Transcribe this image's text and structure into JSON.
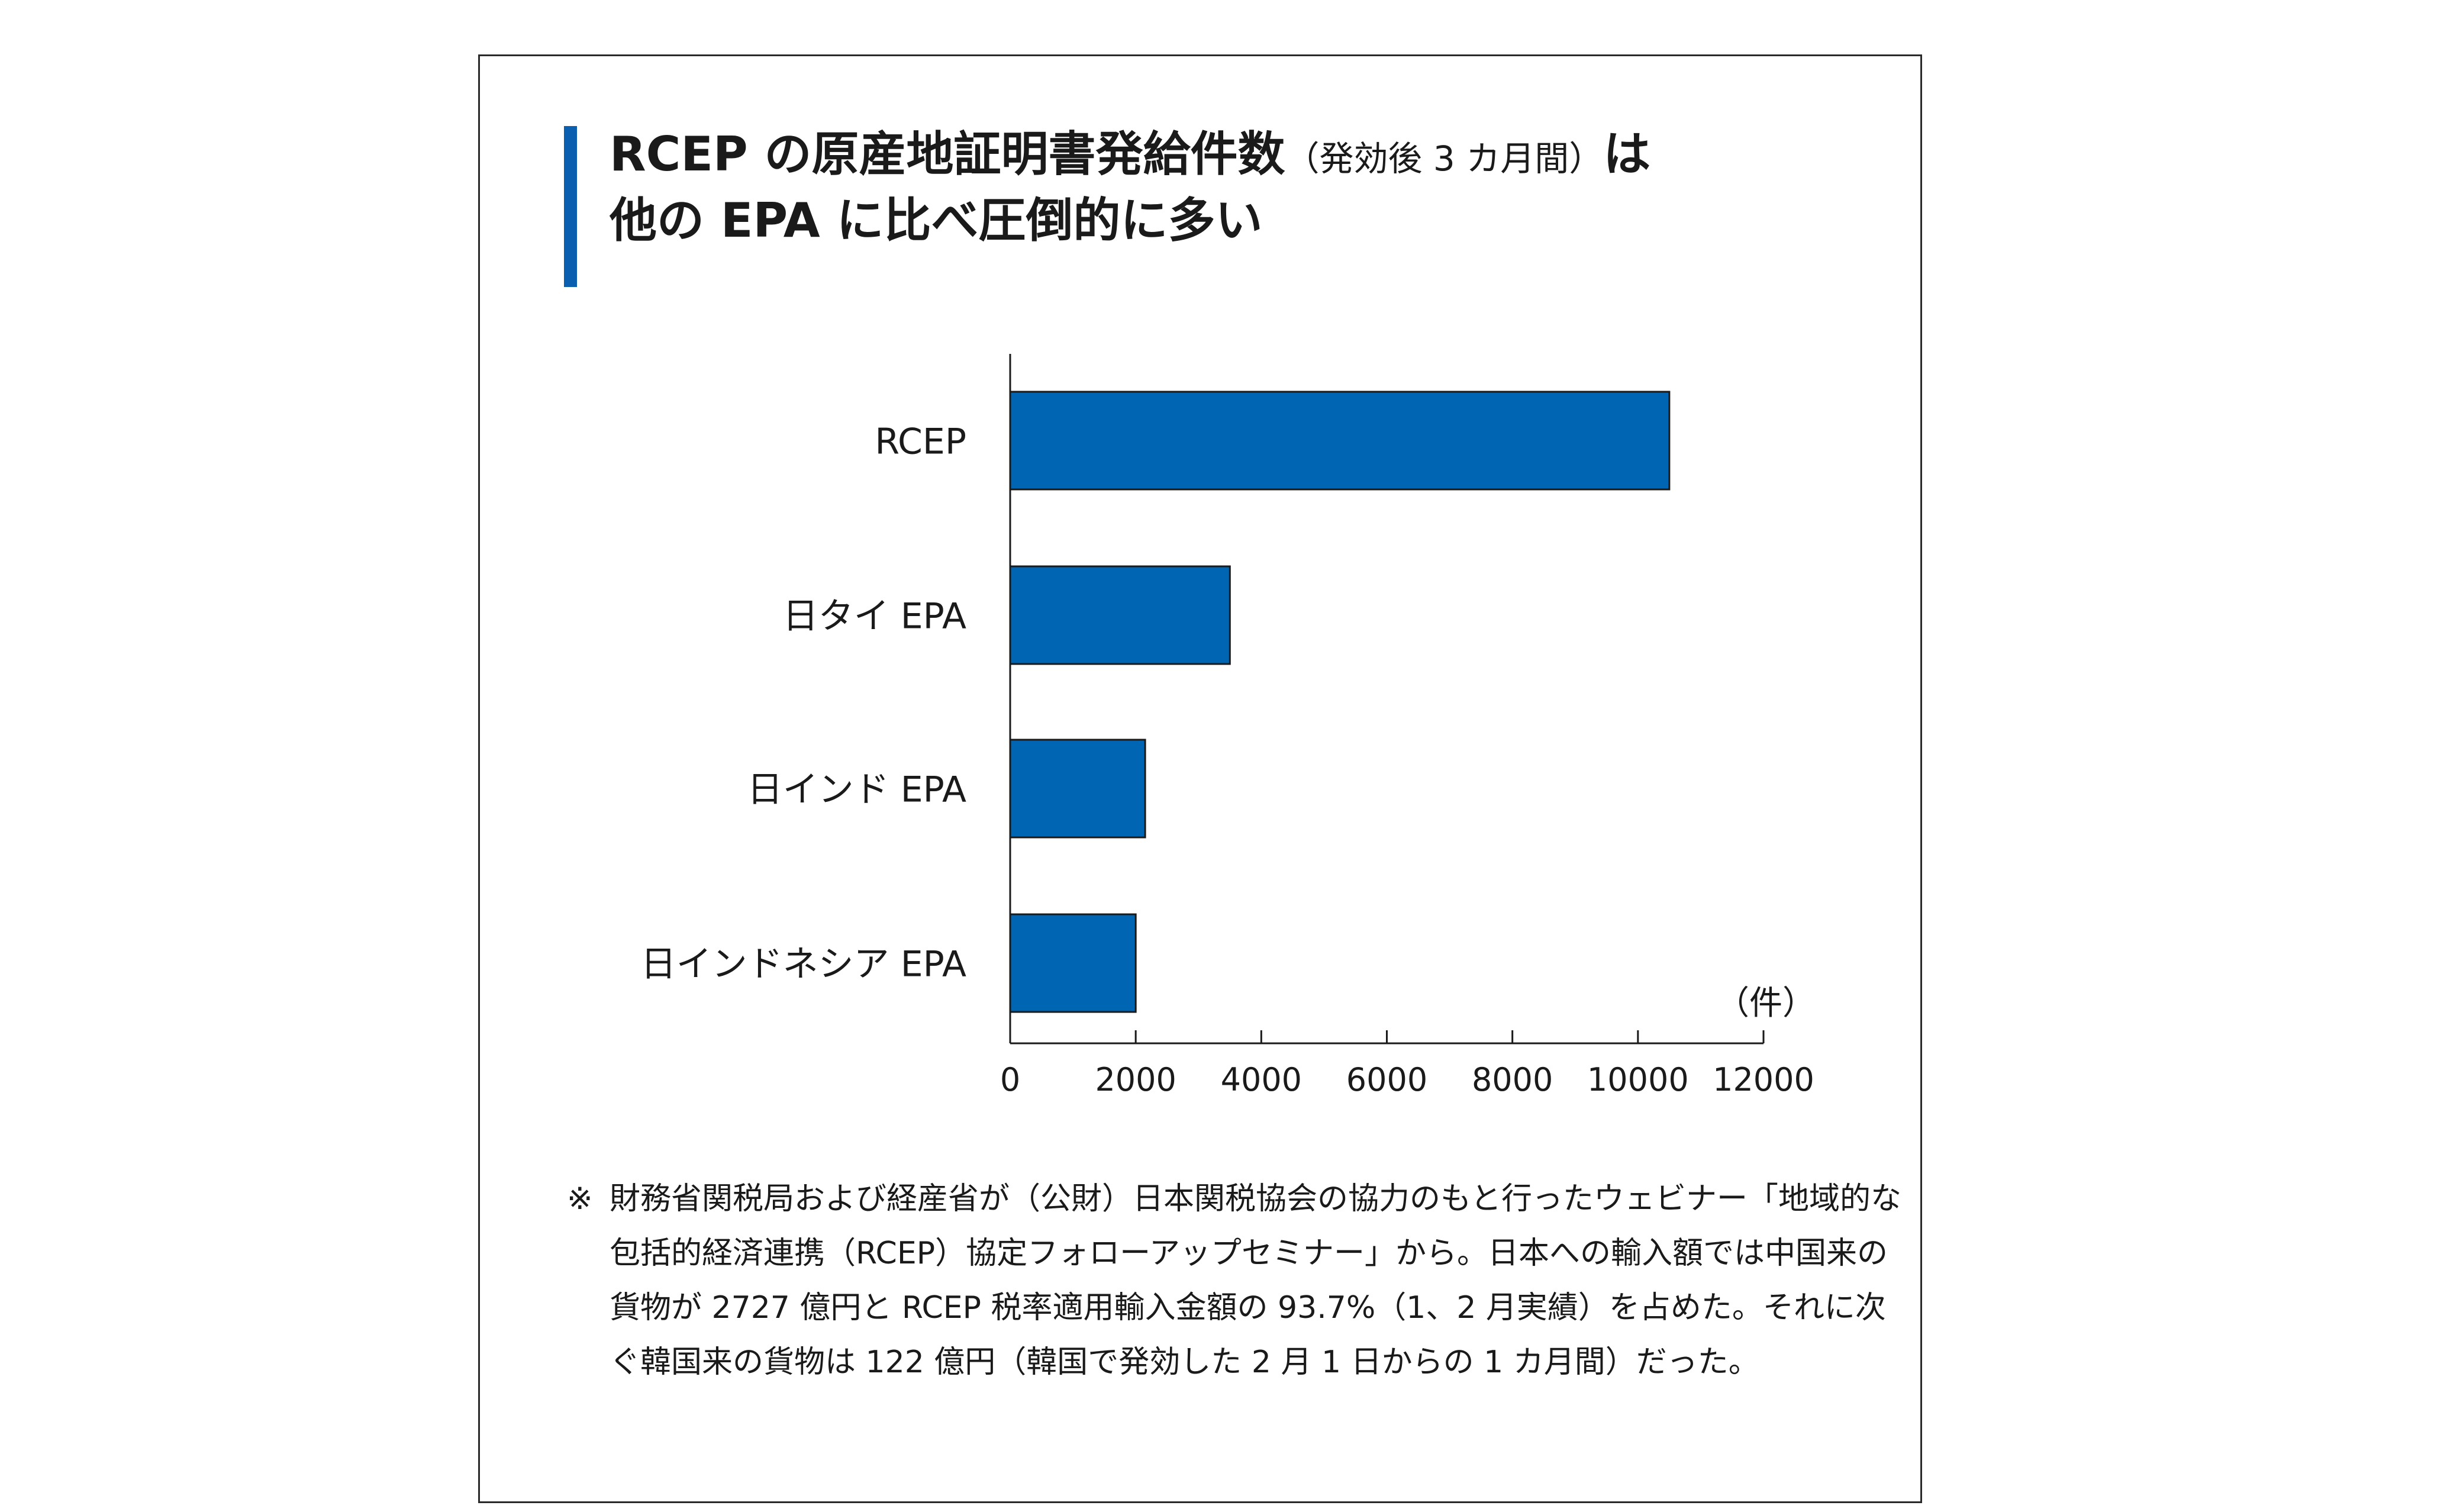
{
  "title": {
    "main_a": "RCEP の原産地証明書発給件数",
    "paren": "（発効後 3 カ月間）",
    "main_b": "は",
    "line2": "他の EPA に比べ圧倒的に多い"
  },
  "colors": {
    "bar": "#0066b3",
    "accent": "#0a5fb0"
  },
  "chart_data": {
    "type": "bar",
    "orientation": "horizontal",
    "categories": [
      "RCEP",
      "日タイ EPA",
      "日インド EPA",
      "日インドネシア EPA"
    ],
    "values": [
      10500,
      3500,
      2150,
      2000
    ],
    "xlim": [
      0,
      12000
    ],
    "xticks": [
      0,
      2000,
      4000,
      6000,
      8000,
      10000,
      12000
    ],
    "unit": "（件）",
    "grid": false
  },
  "note": {
    "mark": "※",
    "text": "財務省関税局および経産省が（公財）日本関税協会の協力のもと行ったウェビナー「地域的な包括的経済連携（RCEP）協定フォローアップセミナー」から。日本への輸入額では中国来の貨物が 2727 億円と RCEP 税率適用輸入金額の 93.7%（1、2 月実績）を占めた。それに次ぐ韓国来の貨物は 122 億円（韓国で発効した 2 月 1 日からの 1 カ月間）だった。"
  }
}
